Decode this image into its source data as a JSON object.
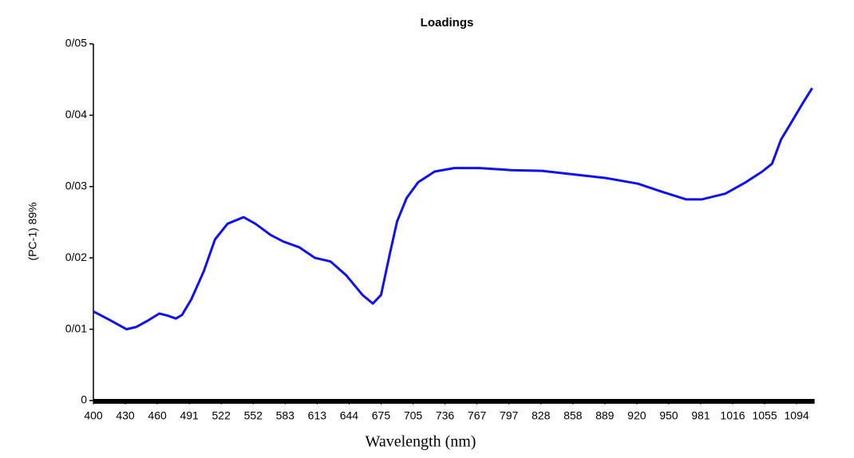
{
  "chart_data": {
    "type": "line",
    "title": "Loadings",
    "x_label": "Wavelength (nm)",
    "y_label": "(PC-1) 89%",
    "series": [
      {
        "color": "#1010f0",
        "x": [
          400,
          414,
          431,
          440,
          451,
          462,
          470,
          478,
          484,
          493,
          505,
          516,
          528,
          543,
          554,
          569,
          581,
          596,
          611,
          626,
          641,
          657,
          667,
          675,
          683,
          690,
          699,
          710,
          726,
          745,
          769,
          799,
          829,
          859,
          890,
          921,
          943,
          967,
          982,
          1008,
          1032,
          1052,
          1064,
          1075,
          1085,
          1101,
          1113
        ],
        "values": [
          0.0125,
          0.0114,
          0.01,
          0.0103,
          0.0112,
          0.0122,
          0.0119,
          0.0115,
          0.012,
          0.0142,
          0.0181,
          0.0226,
          0.0248,
          0.0257,
          0.0248,
          0.0232,
          0.0223,
          0.0215,
          0.02,
          0.0195,
          0.0176,
          0.0148,
          0.0136,
          0.0148,
          0.0204,
          0.0251,
          0.0284,
          0.0306,
          0.0321,
          0.0326,
          0.0326,
          0.0323,
          0.0322,
          0.0317,
          0.0312,
          0.0304,
          0.0293,
          0.0282,
          0.0282,
          0.029,
          0.0306,
          0.0321,
          0.0332,
          0.0366,
          0.0385,
          0.0416,
          0.0438
        ]
      }
    ],
    "xlim": [
      400,
      1114
    ],
    "xticks": [
      400,
      430,
      460,
      491,
      522,
      552,
      583,
      613,
      644,
      675,
      705,
      736,
      767,
      797,
      828,
      858,
      889,
      920,
      950,
      981,
      1016,
      1055,
      1094
    ],
    "ylim": [
      0,
      0.05
    ],
    "yticks": [
      0,
      {
        "value": 0.01,
        "label": "0/01"
      },
      {
        "value": 0.02,
        "label": "0/02"
      },
      {
        "value": 0.03,
        "label": "0/03"
      },
      {
        "value": 0.04,
        "label": "0/04"
      },
      {
        "value": 0.05,
        "label": "0/05"
      }
    ]
  }
}
